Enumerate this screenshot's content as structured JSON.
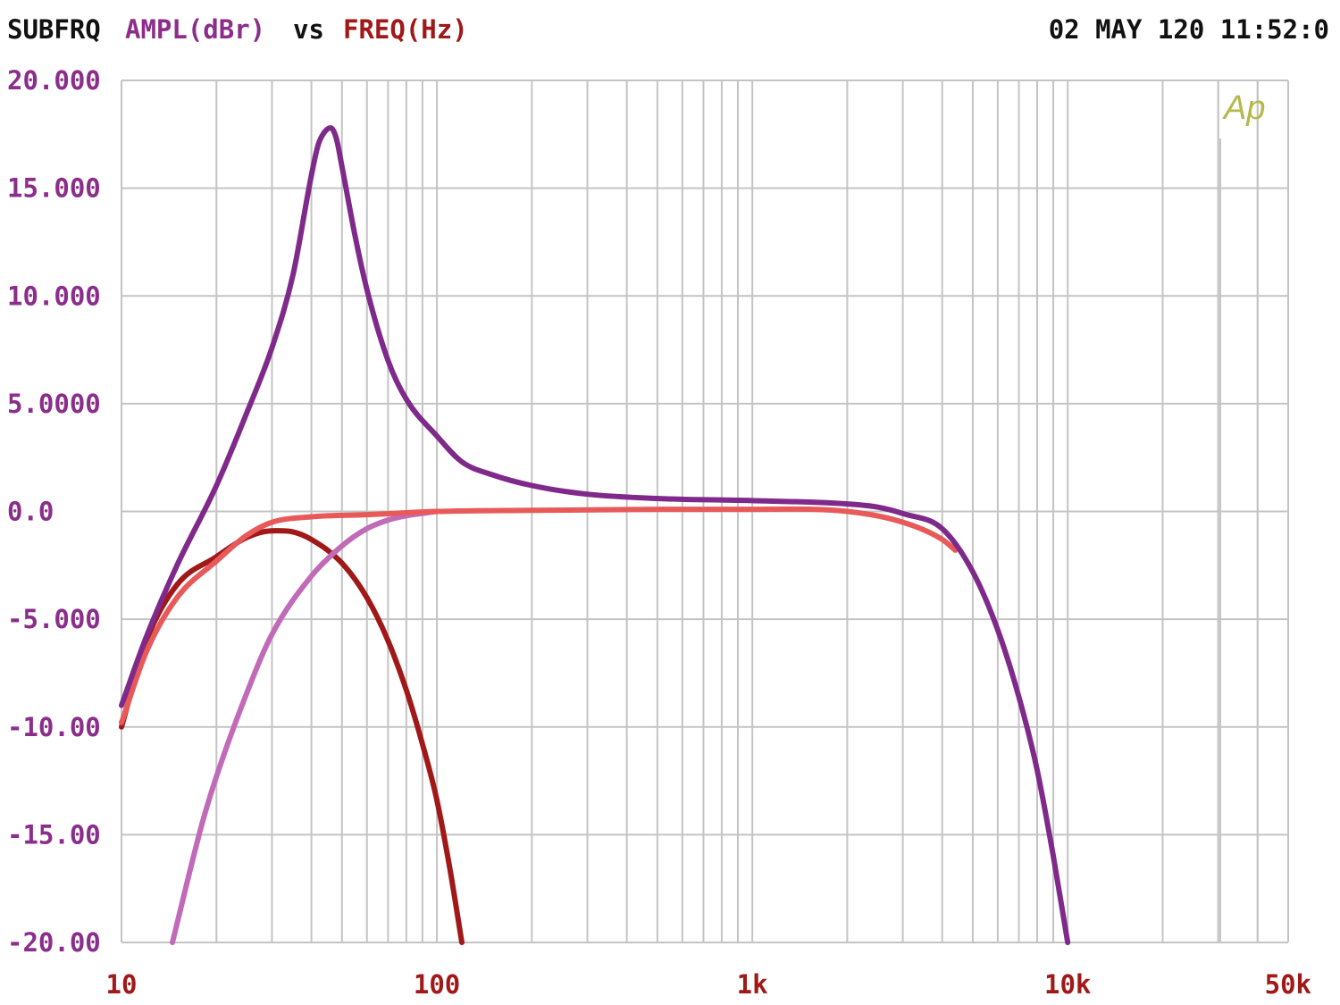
{
  "header": {
    "meas_name": "SUBFRQ",
    "y_quantity": "AMPL(dBr)",
    "vs_text": "vs",
    "x_quantity": "FREQ(Hz)",
    "datetime": "02 MAY 120 11:52:0"
  },
  "logo": {
    "text": "Ap",
    "color": "#b5b84a"
  },
  "colors": {
    "grid": "#c4c4c4",
    "y_tick_text": "#8b2e8b",
    "x_tick_text": "#a01818",
    "title_text": "#111111"
  },
  "chart_data": {
    "type": "line",
    "x_scale": "log",
    "xlim": [
      10,
      50000
    ],
    "ylim": [
      -20,
      20
    ],
    "grid": true,
    "x_tick_labels": [
      {
        "value": 10,
        "label": "10"
      },
      {
        "value": 100,
        "label": "100"
      },
      {
        "value": 1000,
        "label": "1k"
      },
      {
        "value": 10000,
        "label": "10k"
      },
      {
        "value": 50000,
        "label": "50k"
      }
    ],
    "y_tick_labels": [
      {
        "value": 20,
        "label": "20.000"
      },
      {
        "value": 15,
        "label": "15.000"
      },
      {
        "value": 10,
        "label": "10.000"
      },
      {
        "value": 5,
        "label": "5.0000"
      },
      {
        "value": 0,
        "label": "0.0"
      },
      {
        "value": -5,
        "label": "-5.000"
      },
      {
        "value": -10,
        "label": "-10.00"
      },
      {
        "value": -15,
        "label": "-15.00"
      },
      {
        "value": -20,
        "label": "-20.00"
      }
    ],
    "series": [
      {
        "color": "#a01818",
        "points": [
          [
            10,
            -10
          ],
          [
            12,
            -6
          ],
          [
            15,
            -3.4
          ],
          [
            20,
            -2.1
          ],
          [
            25,
            -1.2
          ],
          [
            30,
            -0.9
          ],
          [
            35,
            -0.95
          ],
          [
            40,
            -1.3
          ],
          [
            50,
            -2.4
          ],
          [
            60,
            -4.0
          ],
          [
            70,
            -6.0
          ],
          [
            80,
            -8.3
          ],
          [
            90,
            -10.8
          ],
          [
            100,
            -13.4
          ],
          [
            110,
            -16.6
          ],
          [
            120,
            -20
          ]
        ]
      },
      {
        "color": "#c06ab8",
        "points": [
          [
            14.5,
            -20
          ],
          [
            18,
            -14.5
          ],
          [
            20,
            -12.3
          ],
          [
            25,
            -8.4
          ],
          [
            30,
            -5.7
          ],
          [
            40,
            -3.0
          ],
          [
            50,
            -1.6
          ],
          [
            60,
            -0.8
          ],
          [
            70,
            -0.4
          ],
          [
            80,
            -0.2
          ],
          [
            100,
            0.0
          ]
        ]
      },
      {
        "color": "#e85a5a",
        "points": [
          [
            10,
            -9.8
          ],
          [
            12,
            -6.5
          ],
          [
            15,
            -4.0
          ],
          [
            20,
            -2.3
          ],
          [
            25,
            -1.1
          ],
          [
            30,
            -0.5
          ],
          [
            40,
            -0.25
          ],
          [
            60,
            -0.15
          ],
          [
            100,
            0
          ],
          [
            200,
            0.05
          ],
          [
            500,
            0.1
          ],
          [
            1000,
            0.1
          ],
          [
            2000,
            0
          ],
          [
            3000,
            -0.5
          ],
          [
            4000,
            -1.3
          ],
          [
            4400,
            -1.8
          ]
        ]
      },
      {
        "color": "#7f2a8a",
        "points": [
          [
            10,
            -9
          ],
          [
            12,
            -5.8
          ],
          [
            15,
            -2.5
          ],
          [
            20,
            1.2
          ],
          [
            25,
            4.6
          ],
          [
            30,
            7.6
          ],
          [
            35,
            11.0
          ],
          [
            40,
            15.6
          ],
          [
            42,
            17.0
          ],
          [
            44,
            17.6
          ],
          [
            46,
            17.8
          ],
          [
            48,
            17.3
          ],
          [
            50,
            16.0
          ],
          [
            55,
            12.8
          ],
          [
            60,
            10.3
          ],
          [
            70,
            7.0
          ],
          [
            80,
            5.2
          ],
          [
            100,
            3.5
          ],
          [
            120,
            2.3
          ],
          [
            150,
            1.7
          ],
          [
            200,
            1.2
          ],
          [
            300,
            0.8
          ],
          [
            500,
            0.6
          ],
          [
            1000,
            0.5
          ],
          [
            2000,
            0.35
          ],
          [
            2500,
            0.2
          ],
          [
            3000,
            -0.1
          ],
          [
            4000,
            -0.8
          ],
          [
            5000,
            -2.8
          ],
          [
            6000,
            -5.5
          ],
          [
            7000,
            -8.6
          ],
          [
            8000,
            -12.0
          ],
          [
            9000,
            -16.0
          ],
          [
            10000,
            -20
          ]
        ]
      }
    ]
  }
}
